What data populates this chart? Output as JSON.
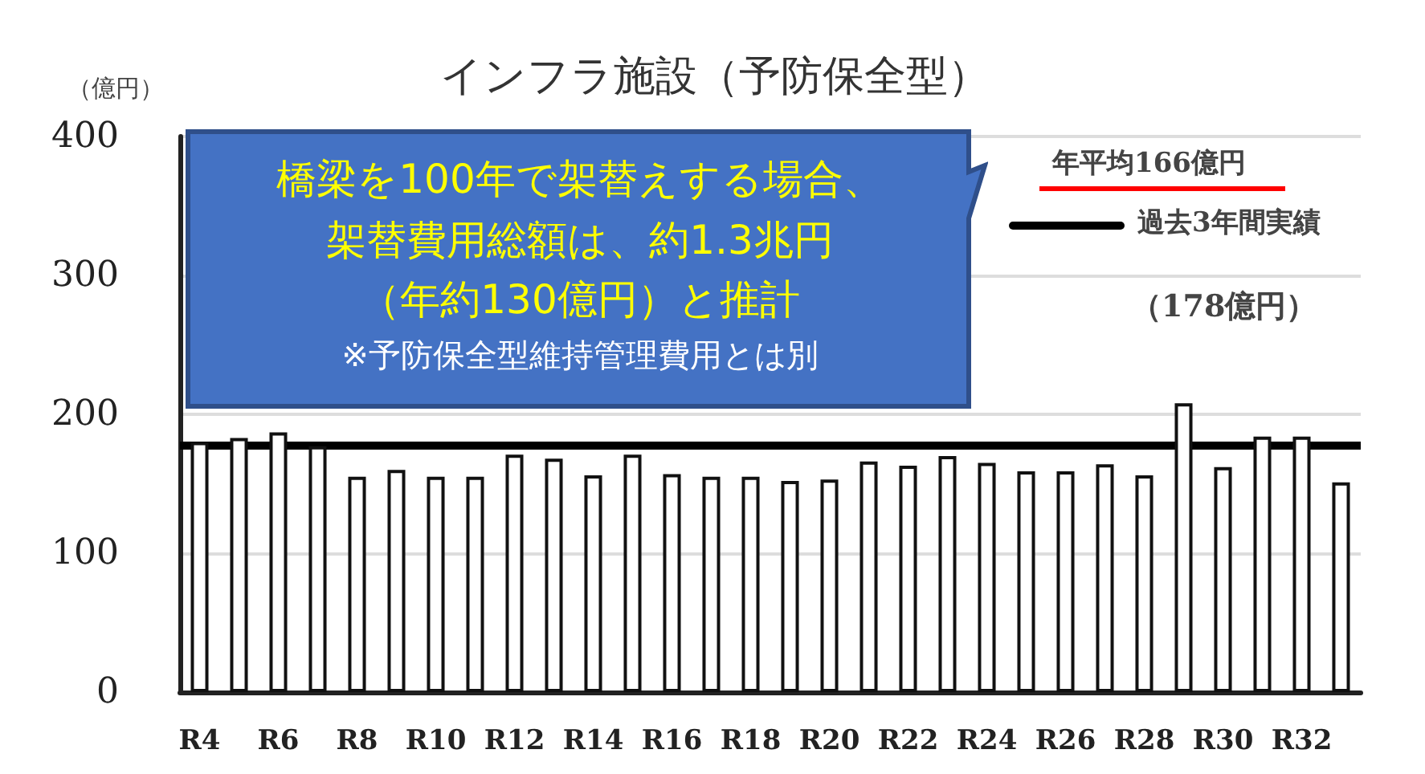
{
  "chart_data": {
    "type": "bar",
    "title": "インフラ施設（予防保全型）",
    "ylabel": "（億円）",
    "categories": [
      "R4",
      null,
      "R6",
      null,
      "R8",
      null,
      "R10",
      null,
      "R12",
      null,
      "R14",
      null,
      "R16",
      null,
      "R18",
      null,
      "R20",
      null,
      "R22",
      null,
      "R24",
      null,
      "R26",
      null,
      "R28",
      null,
      "R30",
      null,
      "R32",
      null
    ],
    "values": [
      180,
      183,
      187,
      177,
      155,
      160,
      155,
      155,
      171,
      168,
      156,
      171,
      157,
      155,
      155,
      152,
      153,
      166,
      163,
      170,
      165,
      159,
      159,
      164,
      156,
      208,
      162,
      184,
      184,
      151
    ],
    "color": "#ffffff",
    "ylim": [
      0,
      400
    ],
    "yticks": [
      0,
      100,
      200,
      300,
      400
    ],
    "grid": "y",
    "ref_lines": [
      {
        "axis": "y",
        "value": 178,
        "label": "過去3年間実績",
        "color": "#000000"
      }
    ],
    "annotations": [
      "年平均166億円",
      "（178億円）",
      "橋梁を100年で架替えする場合、",
      "架替費用総額は、約1.3兆円",
      "（年約130億円）と推計",
      "※予防保全型維持管理費用とは別"
    ]
  }
}
